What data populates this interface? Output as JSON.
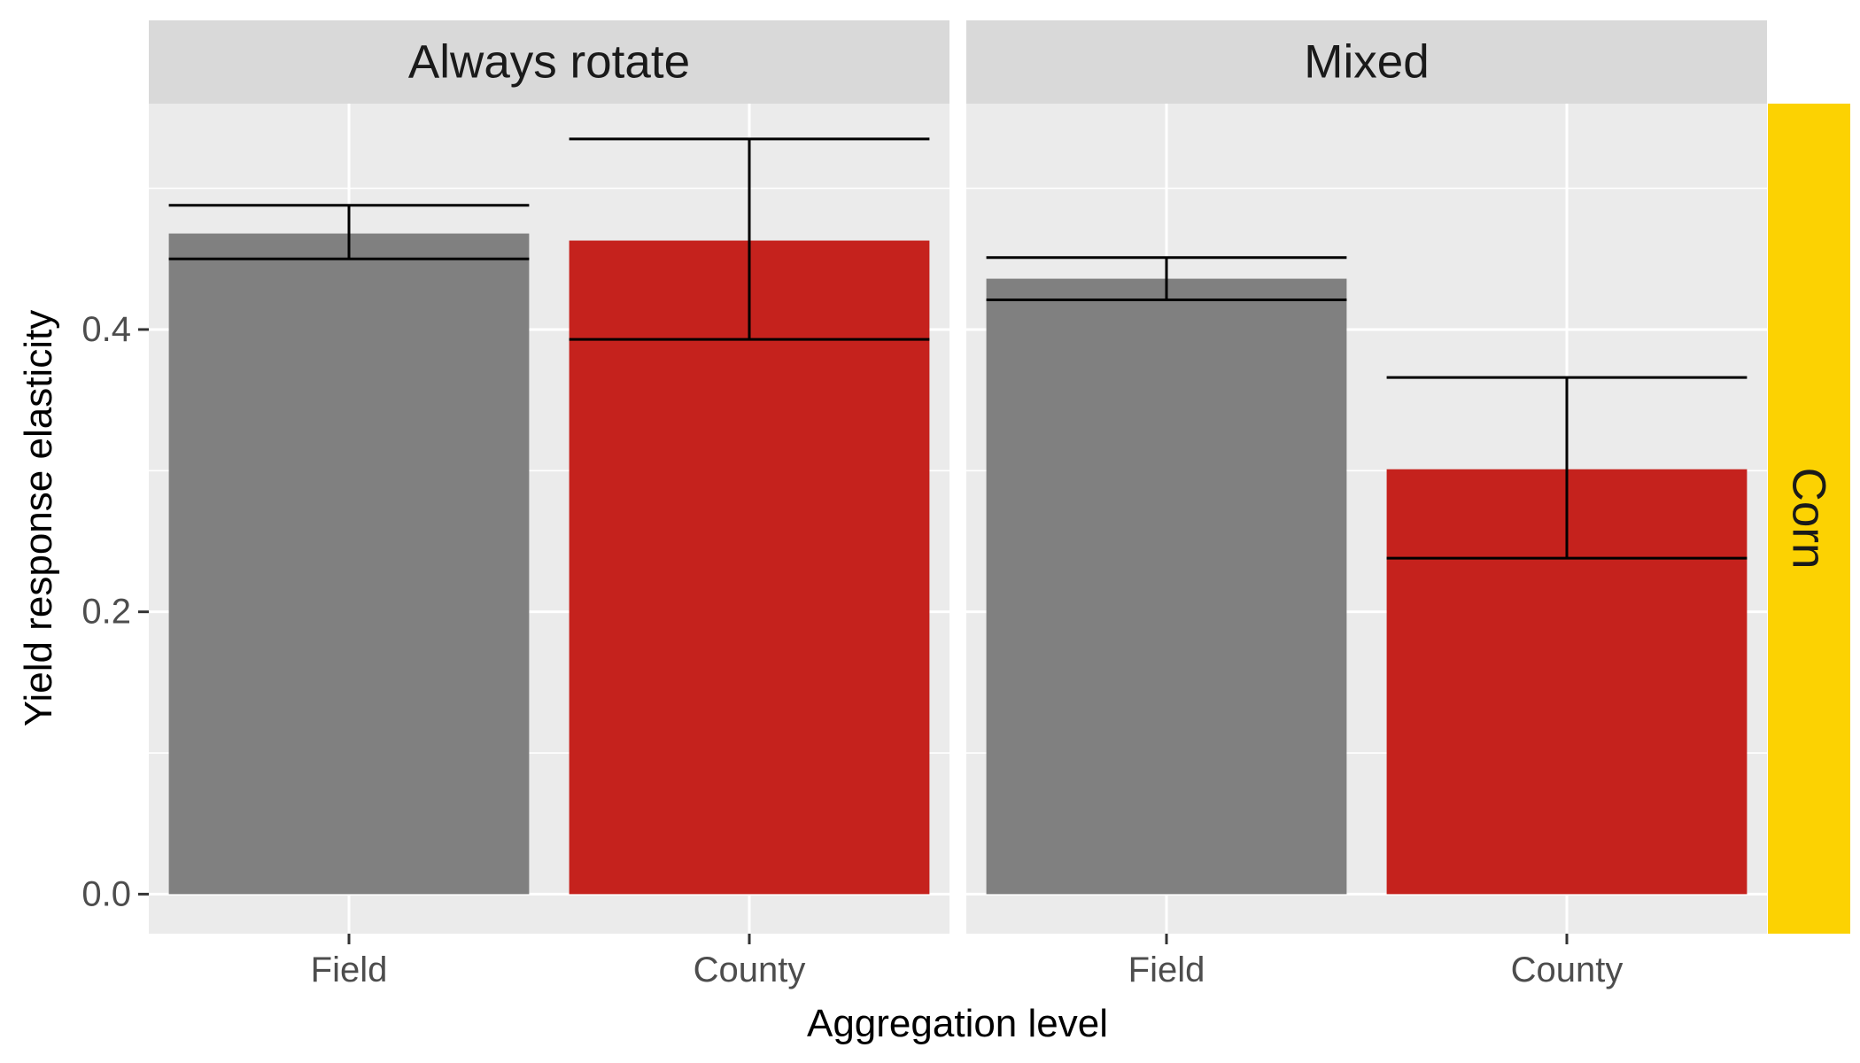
{
  "chart_data": {
    "type": "bar",
    "xlabel": "Aggregation level",
    "ylabel": "Yield response elasticity",
    "categories": [
      "Field",
      "County"
    ],
    "y_ticks": [
      0.0,
      0.2,
      0.4
    ],
    "y_tick_labels": [
      "0.0",
      "0.2",
      "0.4"
    ],
    "ylim": [
      -0.028,
      0.56
    ],
    "row_strip": "Corn",
    "colors": {
      "Field": "#808080",
      "County": "#c5221d",
      "row_strip": "#fcd202",
      "strip": "#d9d9d9",
      "panel": "#ebebeb"
    },
    "panels": [
      {
        "label": "Always rotate",
        "bars": [
          {
            "category": "Field",
            "value": 0.468,
            "lower": 0.45,
            "upper": 0.488
          },
          {
            "category": "County",
            "value": 0.463,
            "lower": 0.393,
            "upper": 0.535
          }
        ]
      },
      {
        "label": "Mixed",
        "bars": [
          {
            "category": "Field",
            "value": 0.436,
            "lower": 0.421,
            "upper": 0.451
          },
          {
            "category": "County",
            "value": 0.301,
            "lower": 0.238,
            "upper": 0.366
          }
        ]
      }
    ]
  }
}
